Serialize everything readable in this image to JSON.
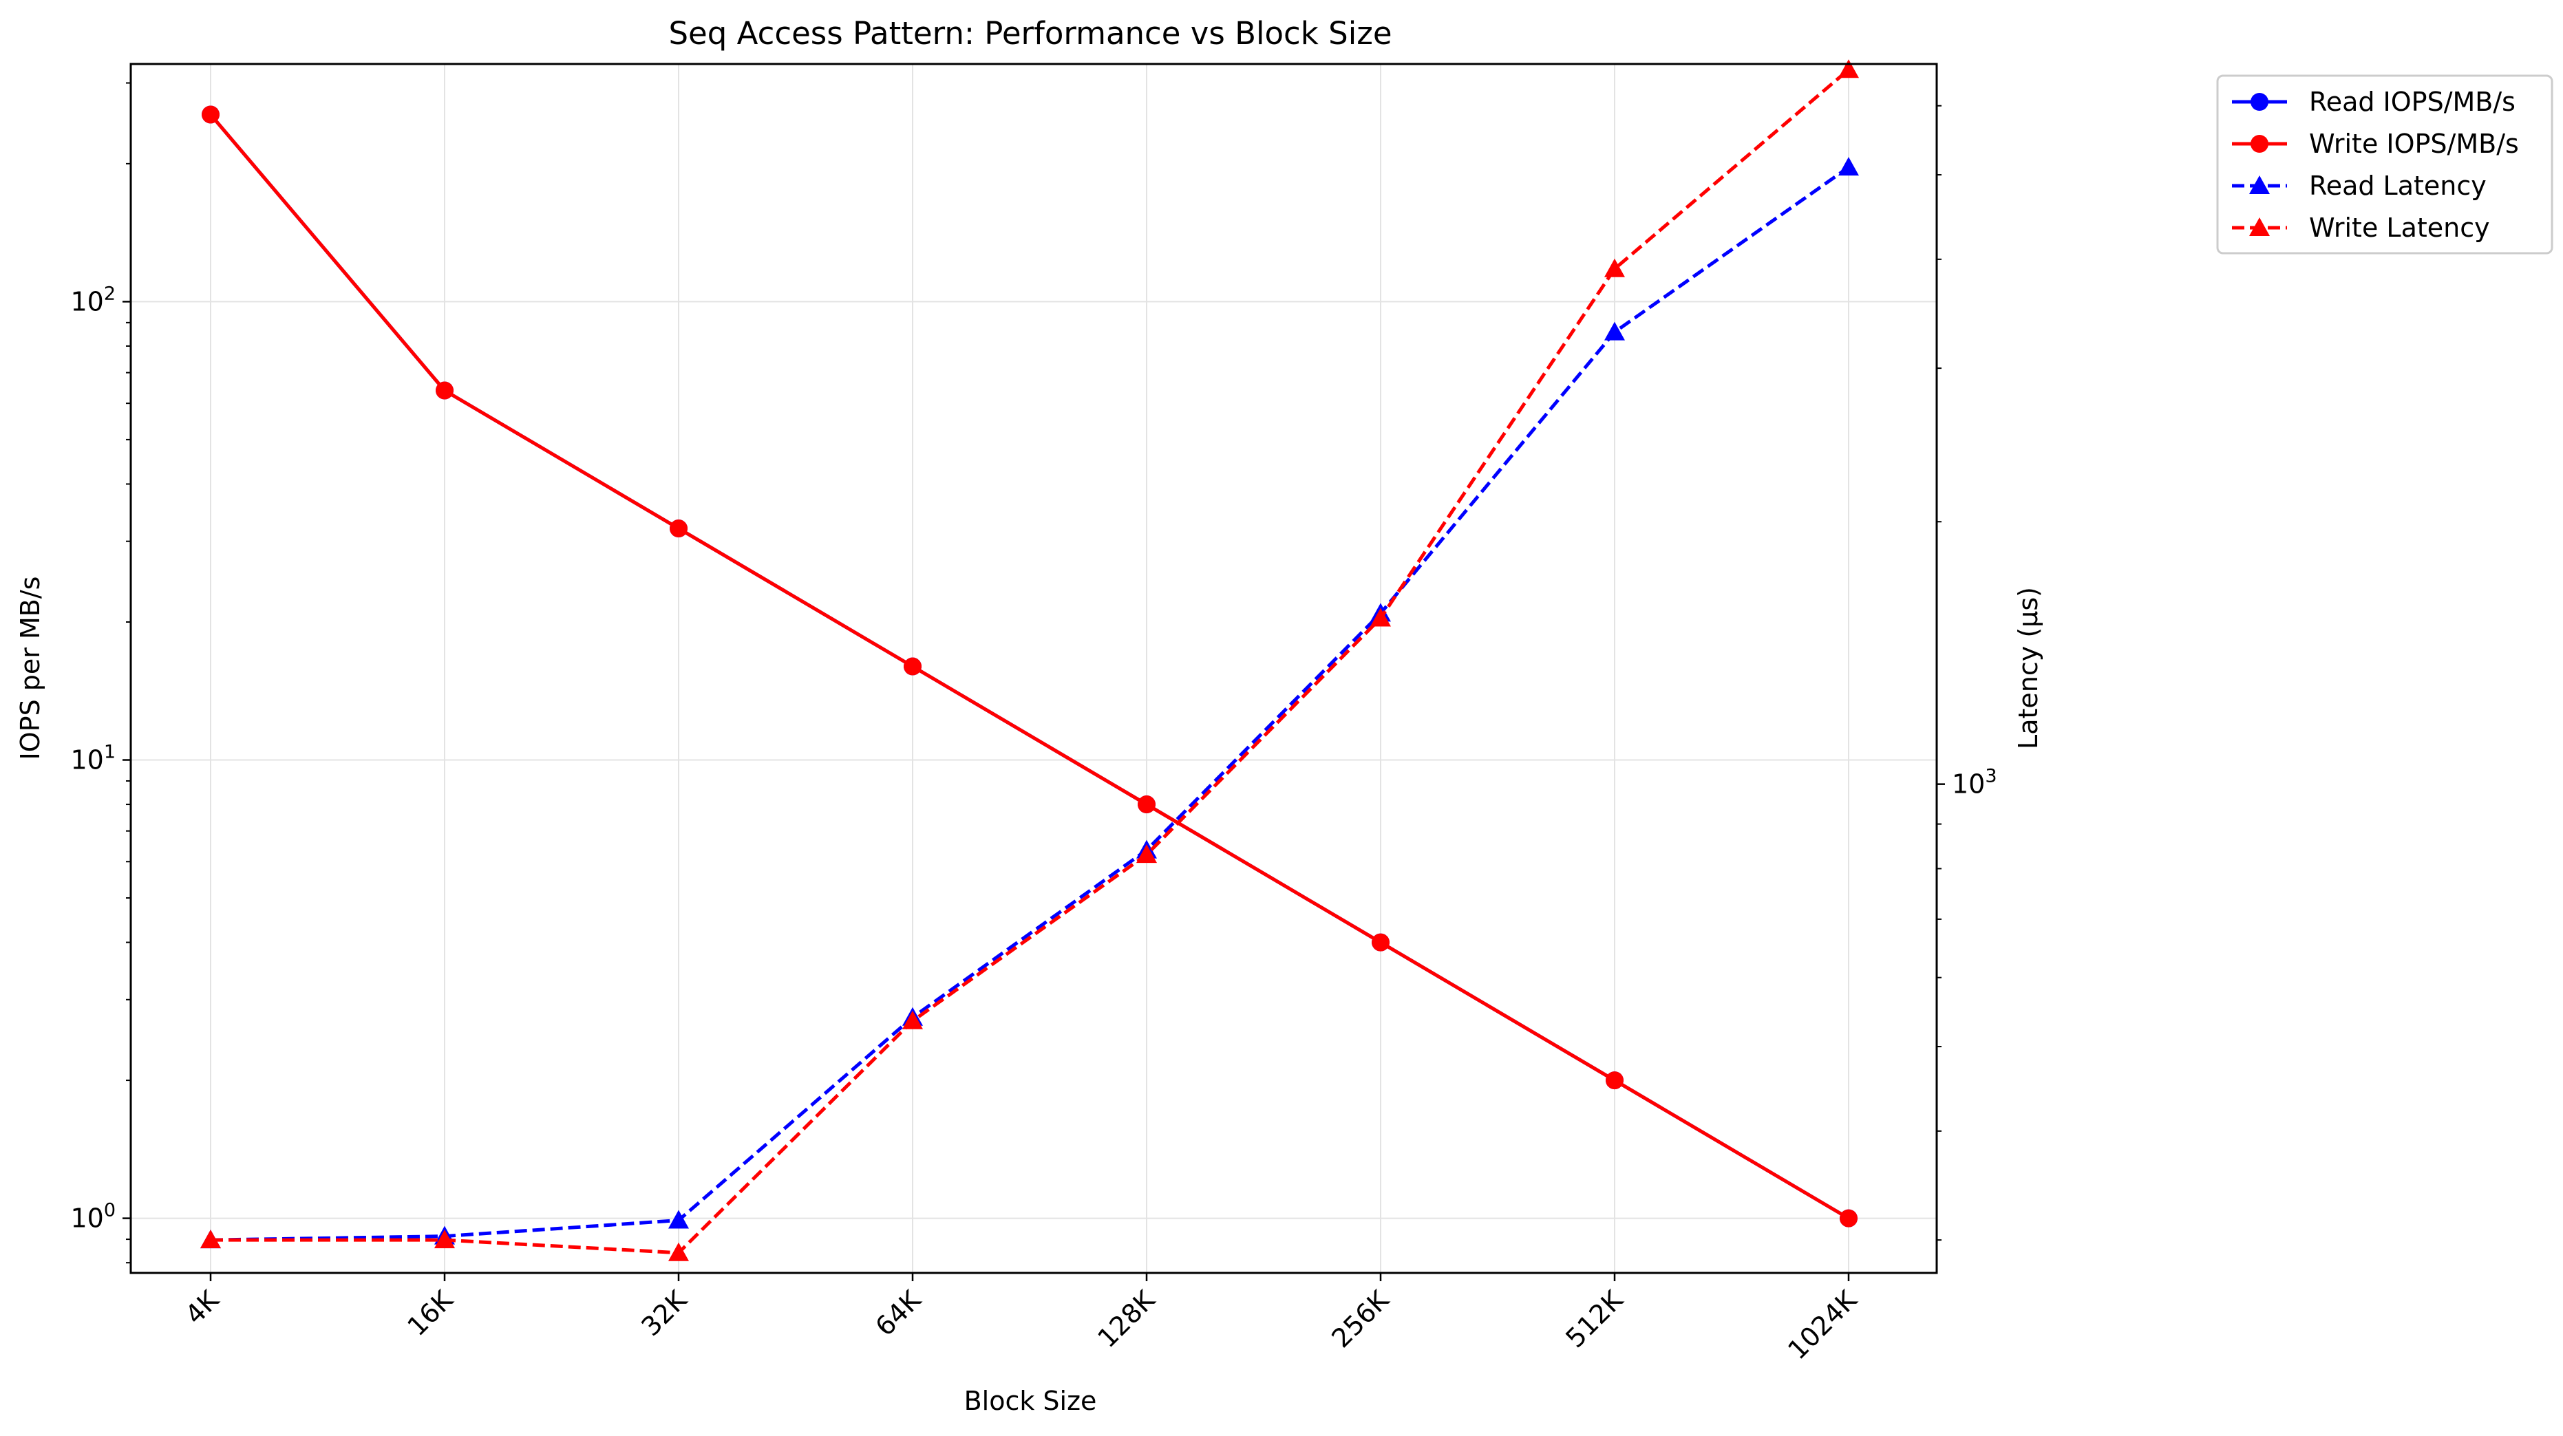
{
  "chart_data": {
    "type": "line",
    "title": "Seq Access Pattern: Performance vs Block Size",
    "xlabel": "Block Size",
    "ylabel_left": "IOPS per MB/s",
    "ylabel_right": "Latency (µs)",
    "categories": [
      "4K",
      "16K",
      "32K",
      "64K",
      "128K",
      "256K",
      "512K",
      "1024K"
    ],
    "left_axis": {
      "scale": "log",
      "ylim": [
        0.76,
        330
      ],
      "tick_values": [
        1,
        10,
        100
      ],
      "tick_labels": [
        {
          "base": "10",
          "exp": "0"
        },
        {
          "base": "10",
          "exp": "1"
        },
        {
          "base": "10",
          "exp": "2"
        }
      ]
    },
    "right_axis": {
      "scale": "log",
      "ylim": [
        275,
        6700
      ],
      "tick_values": [
        1000
      ],
      "tick_labels": [
        {
          "base": "10",
          "exp": "3"
        }
      ]
    },
    "grid": true,
    "legend_placement": "outside top-right",
    "series": [
      {
        "name": "Read IOPS/MB/s",
        "axis": "left",
        "color": "#0000ff",
        "line": "solid",
        "marker": "circle",
        "values": [
          256,
          64,
          32,
          16,
          8,
          4,
          2,
          1
        ]
      },
      {
        "name": "Write IOPS/MB/s",
        "axis": "left",
        "color": "#ff0000",
        "line": "solid",
        "marker": "circle",
        "values": [
          256,
          64,
          32,
          16,
          8,
          4,
          2,
          1
        ]
      },
      {
        "name": "Read Latency",
        "axis": "right",
        "color": "#0000ff",
        "line": "dashed",
        "marker": "triangle",
        "values": [
          300,
          303,
          316,
          540,
          840,
          1570,
          3300,
          5100
        ]
      },
      {
        "name": "Write Latency",
        "axis": "right",
        "color": "#ff0000",
        "line": "dashed",
        "marker": "triangle",
        "values": [
          300,
          300,
          290,
          535,
          830,
          1550,
          3900,
          6600
        ]
      }
    ]
  }
}
